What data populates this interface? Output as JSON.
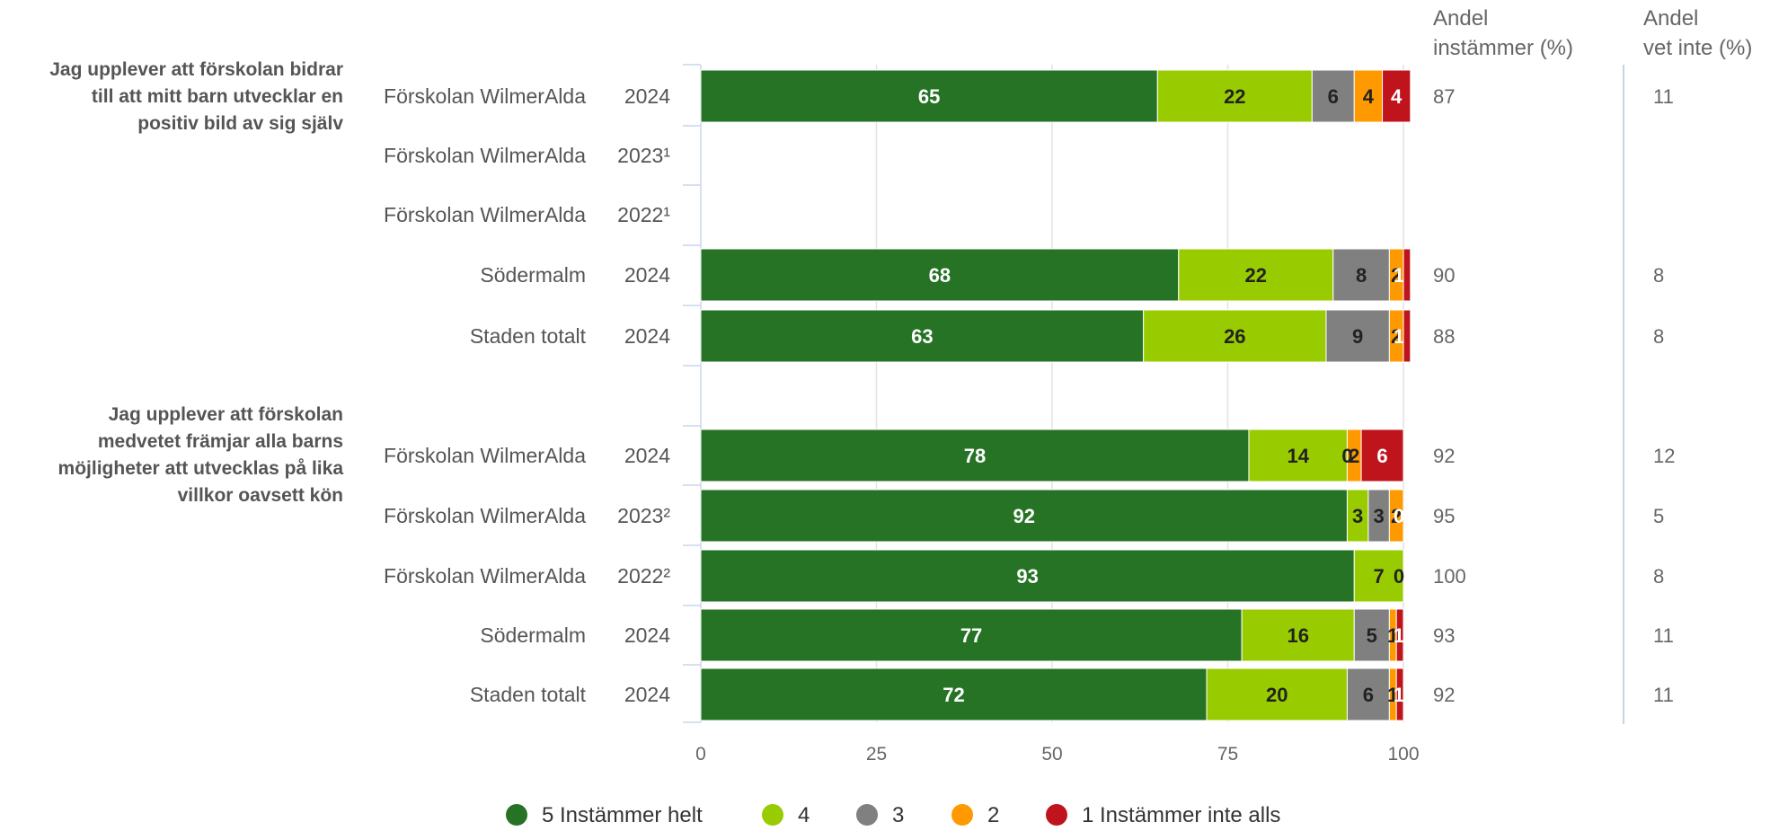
{
  "chart_data": {
    "type": "bar",
    "orientation": "horizontal",
    "stacked": true,
    "xlim": [
      0,
      100
    ],
    "xticks": [
      "0",
      "25",
      "50",
      "75",
      "100"
    ],
    "grid": true,
    "legend_placement": "bottom",
    "series": [
      {
        "name": "5 Instämmer helt",
        "color": "#267326"
      },
      {
        "name": "4",
        "color": "#99cc00"
      },
      {
        "name": "3",
        "color": "#808080"
      },
      {
        "name": "2",
        "color": "#ff9900"
      },
      {
        "name": "1 Instämmer inte alls",
        "color": "#c0141c"
      }
    ],
    "extra_columns": {
      "agree": {
        "label_line1": "Andel",
        "label_line2": "instämmer (%)"
      },
      "dontknow": {
        "label_line1": "Andel",
        "label_line2": "vet inte (%)"
      }
    },
    "groups": [
      {
        "question": "Jag upplever att förskolan bidrar till att mitt barn utvecklar en positiv bild av sig själv",
        "question_lines": [
          "Jag upplever att förskolan bidrar",
          "till att mitt barn utvecklar en",
          "positiv bild av sig själv"
        ],
        "rows": [
          {
            "label": "Förskolan WilmerAlda",
            "year": "2024",
            "values": [
              65,
              22,
              6,
              4,
              4
            ],
            "labels": [
              "65",
              "22",
              "6",
              "4",
              "4"
            ],
            "agree": "87",
            "dontknow": "11"
          },
          {
            "label": "Förskolan WilmerAlda",
            "year": "2023¹",
            "values": [],
            "labels": [],
            "agree": "",
            "dontknow": ""
          },
          {
            "label": "Förskolan WilmerAlda",
            "year": "2022¹",
            "values": [],
            "labels": [],
            "agree": "",
            "dontknow": ""
          },
          {
            "label": "Södermalm",
            "year": "2024",
            "values": [
              68,
              22,
              8,
              2,
              1
            ],
            "labels": [
              "68",
              "22",
              "8",
              "2",
              "1"
            ],
            "agree": "90",
            "dontknow": "8"
          },
          {
            "label": "Staden totalt",
            "year": "2024",
            "values": [
              63,
              26,
              9,
              2,
              1
            ],
            "labels": [
              "63",
              "26",
              "9",
              "2",
              "1"
            ],
            "agree": "88",
            "dontknow": "8"
          }
        ]
      },
      {
        "question": "Jag upplever att förskolan medvetet främjar alla barns möjligheter att utvecklas på lika villkor oavsett kön",
        "question_lines": [
          "Jag upplever att förskolan",
          "medvetet främjar alla barns",
          "möjligheter att utvecklas på lika",
          "villkor oavsett kön"
        ],
        "rows": [
          {
            "label": "Förskolan WilmerAlda",
            "year": "2024",
            "values": [
              78,
              14,
              0,
              2,
              6
            ],
            "labels": [
              "78",
              "14",
              "0",
              "2",
              "6"
            ],
            "agree": "92",
            "dontknow": "12"
          },
          {
            "label": "Förskolan WilmerAlda",
            "year": "2023²",
            "values": [
              92,
              3,
              3,
              2,
              0
            ],
            "labels": [
              "92",
              "3",
              "3",
              "2",
              "0"
            ],
            "agree": "95",
            "dontknow": "5"
          },
          {
            "label": "Förskolan WilmerAlda",
            "year": "2022²",
            "values": [
              93,
              7,
              0,
              0,
              0
            ],
            "labels": [
              "93",
              "7",
              "0",
              "",
              ""
            ],
            "agree": "100",
            "dontknow": "8"
          },
          {
            "label": "Södermalm",
            "year": "2024",
            "values": [
              77,
              16,
              5,
              1,
              1
            ],
            "labels": [
              "77",
              "16",
              "5",
              "1",
              "1"
            ],
            "agree": "93",
            "dontknow": "11"
          },
          {
            "label": "Staden totalt",
            "year": "2024",
            "values": [
              72,
              20,
              6,
              1,
              1
            ],
            "labels": [
              "72",
              "20",
              "6",
              "1",
              "1"
            ],
            "agree": "92",
            "dontknow": "11"
          }
        ]
      }
    ]
  }
}
